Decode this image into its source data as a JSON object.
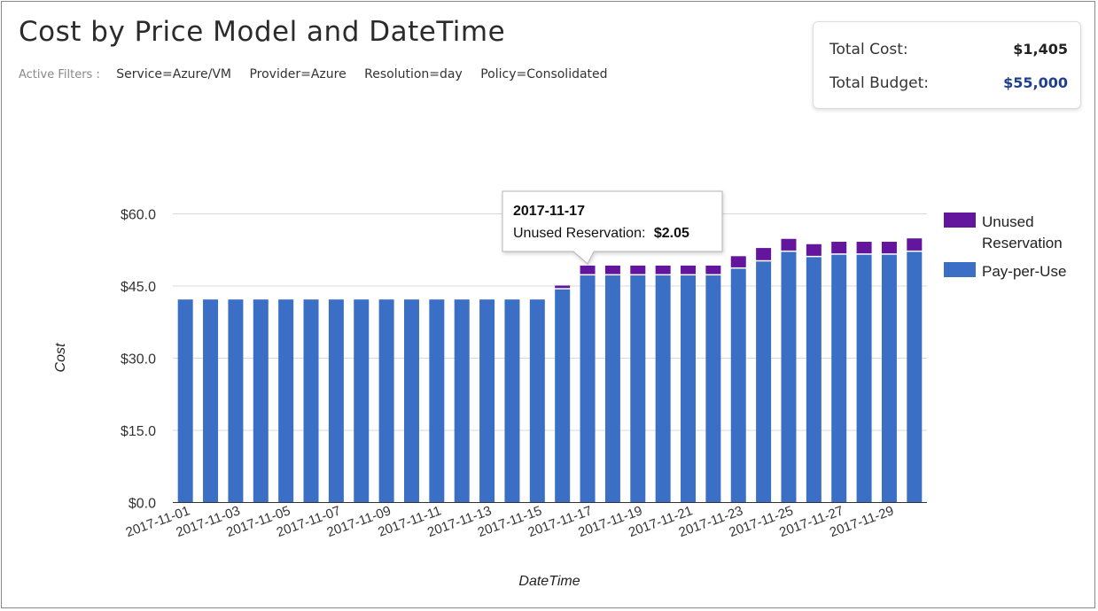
{
  "header": {
    "title": "Cost by Price Model and DateTime",
    "filters_label": "Active Filters :",
    "filters": [
      "Service=Azure/VM",
      "Provider=Azure",
      "Resolution=day",
      "Policy=Consolidated"
    ]
  },
  "summary": {
    "total_cost_label": "Total Cost:",
    "total_cost_value": "$1,405",
    "total_budget_label": "Total Budget:",
    "total_budget_value": "$55,000"
  },
  "tooltip": {
    "date": "2017-11-17",
    "series_label": "Unused Reservation:",
    "value": "$2.05"
  },
  "colors": {
    "pay_per_use": "#3a6fc5",
    "unused_reservation": "#64159e",
    "gridline": "#d8d8d8"
  },
  "chart_data": {
    "type": "bar",
    "stacked": true,
    "xlabel": "DateTime",
    "ylabel": "Cost",
    "ylim": [
      0,
      60
    ],
    "yticks": [
      0,
      15,
      30,
      45,
      60
    ],
    "ytick_labels": [
      "$0.0",
      "$15.0",
      "$30.0",
      "$45.0",
      "$60.0"
    ],
    "grid": true,
    "legend_position": "right",
    "categories": [
      "2017-11-01",
      "2017-11-02",
      "2017-11-03",
      "2017-11-04",
      "2017-11-05",
      "2017-11-06",
      "2017-11-07",
      "2017-11-08",
      "2017-11-09",
      "2017-11-10",
      "2017-11-11",
      "2017-11-12",
      "2017-11-13",
      "2017-11-14",
      "2017-11-15",
      "2017-11-16",
      "2017-11-17",
      "2017-11-18",
      "2017-11-19",
      "2017-11-20",
      "2017-11-21",
      "2017-11-22",
      "2017-11-23",
      "2017-11-24",
      "2017-11-25",
      "2017-11-26",
      "2017-11-27",
      "2017-11-28",
      "2017-11-29",
      "2017-11-30"
    ],
    "xtick_labels": [
      "2017-11-01",
      "2017-11-03",
      "2017-11-05",
      "2017-11-07",
      "2017-11-09",
      "2017-11-11",
      "2017-11-13",
      "2017-11-15",
      "2017-11-17",
      "2017-11-19",
      "2017-11-21",
      "2017-11-23",
      "2017-11-25",
      "2017-11-27",
      "2017-11-29"
    ],
    "series": [
      {
        "name": "Pay-per-Use",
        "values": [
          42.2,
          42.2,
          42.2,
          42.2,
          42.2,
          42.2,
          42.2,
          42.2,
          42.2,
          42.2,
          42.2,
          42.2,
          42.2,
          42.2,
          42.2,
          44.3,
          47.2,
          47.2,
          47.2,
          47.2,
          47.2,
          47.2,
          48.6,
          50.1,
          52.1,
          51.0,
          51.5,
          51.5,
          51.5,
          52.1
        ]
      },
      {
        "name": "Unused Reservation",
        "values": [
          0,
          0,
          0,
          0,
          0,
          0,
          0,
          0,
          0,
          0,
          0,
          0,
          0,
          0,
          0,
          0.8,
          2.05,
          2.05,
          2.05,
          2.05,
          2.05,
          2.05,
          2.6,
          2.8,
          2.7,
          2.7,
          2.7,
          2.7,
          2.7,
          2.8
        ]
      }
    ],
    "legend": [
      "Unused Reservation",
      "Pay-per-Use"
    ]
  }
}
